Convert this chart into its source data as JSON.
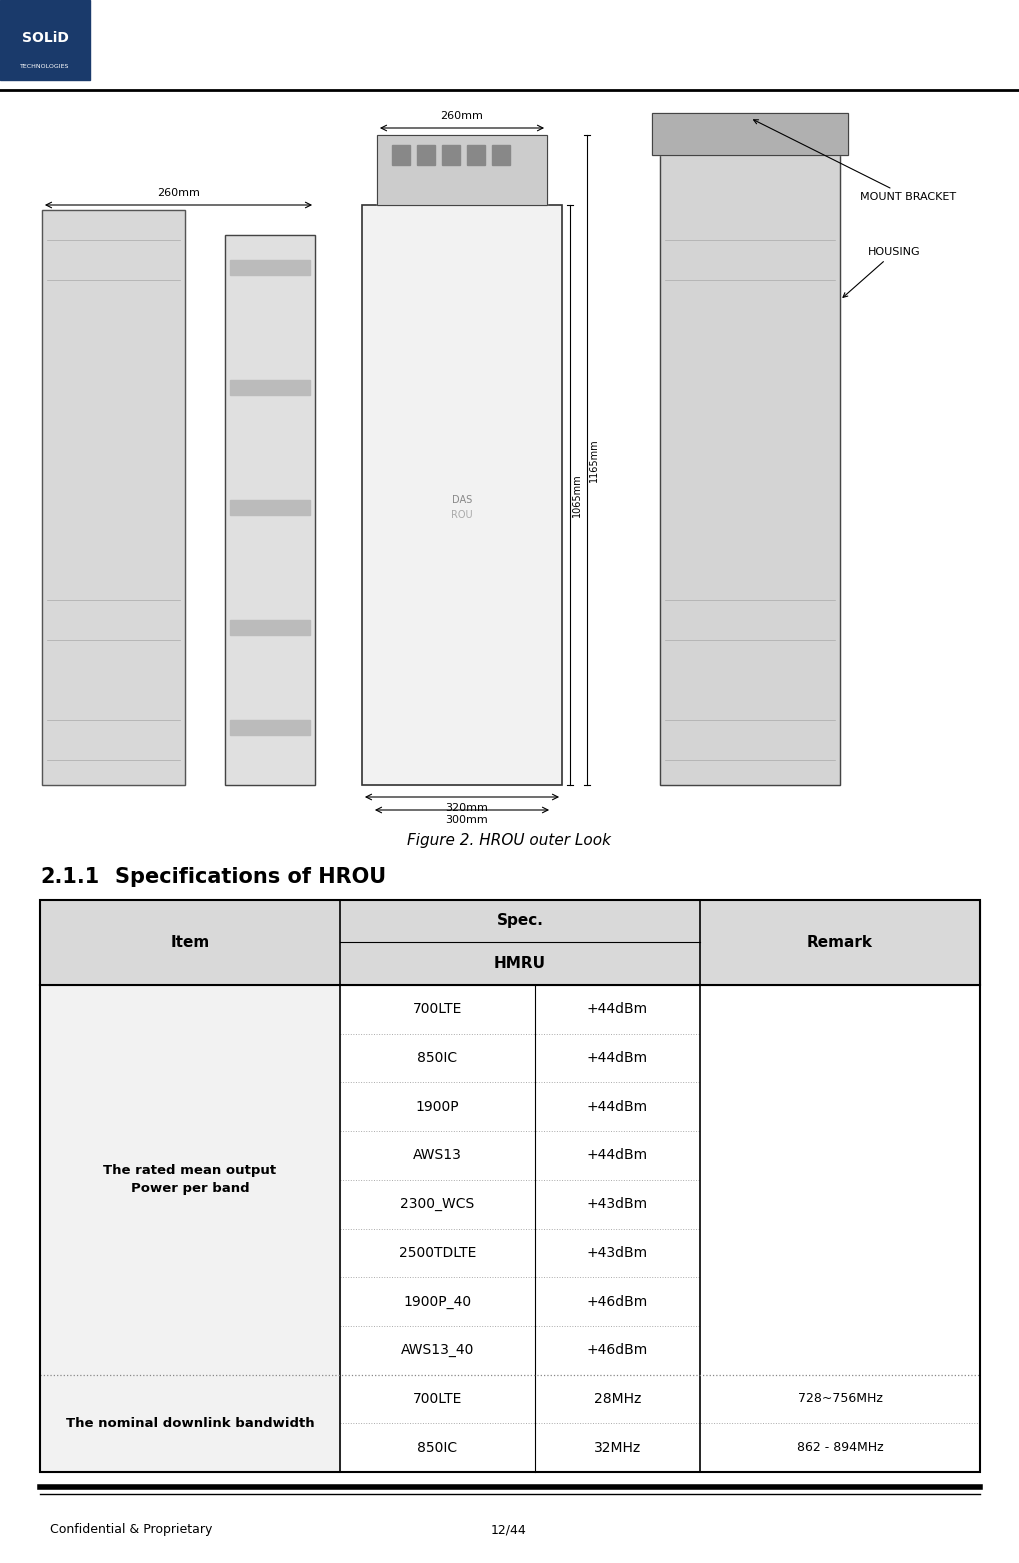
{
  "page_width": 10.19,
  "page_height": 15.63,
  "bg_color": "#ffffff",
  "header_bar_color": "#1a3a6b",
  "figure_caption": "Figure 2. HROU outer Look",
  "section_title_number": "2.1.1",
  "section_title_text": "Specifications of HROU",
  "footer_left": "Confidential & Proprietary",
  "footer_right": "12/44",
  "table_header_bg": "#d9d9d9",
  "col_item_label": "Item",
  "col_spec_label": "Spec.",
  "col_hmru_label": "HMRU",
  "col_remark_label": "Remark",
  "row1_item": "The rated mean output Power per band",
  "row1_bands": [
    "700LTE",
    "850IC",
    "1900P",
    "AWS13",
    "2300_WCS",
    "2500TDLTE",
    "1900P_40",
    "AWS13_40"
  ],
  "row1_specs": [
    "+44dBm",
    "+44dBm",
    "+44dBm",
    "+44dBm",
    "+43dBm",
    "+43dBm",
    "+46dBm",
    "+46dBm"
  ],
  "row1_remarks": [
    "",
    "",
    "",
    "",
    "",
    "",
    "",
    ""
  ],
  "row2_item": "The nominal downlink bandwidth",
  "row2_bands": [
    "700LTE",
    "850IC"
  ],
  "row2_specs": [
    "28MHz",
    "32MHz"
  ],
  "row2_remarks": [
    "728~756MHz",
    "862 - 894MHz"
  ],
  "dim_260mm_side": "260mm",
  "dim_320mm": "320mm",
  "dim_300mm": "300mm",
  "dim_260mm_top": "260mm",
  "dim_1065mm": "1065mm",
  "dim_1165mm": "1165mm",
  "label_mount_bracket": "MOUNT BRACKET",
  "label_housing": "HOUSING"
}
